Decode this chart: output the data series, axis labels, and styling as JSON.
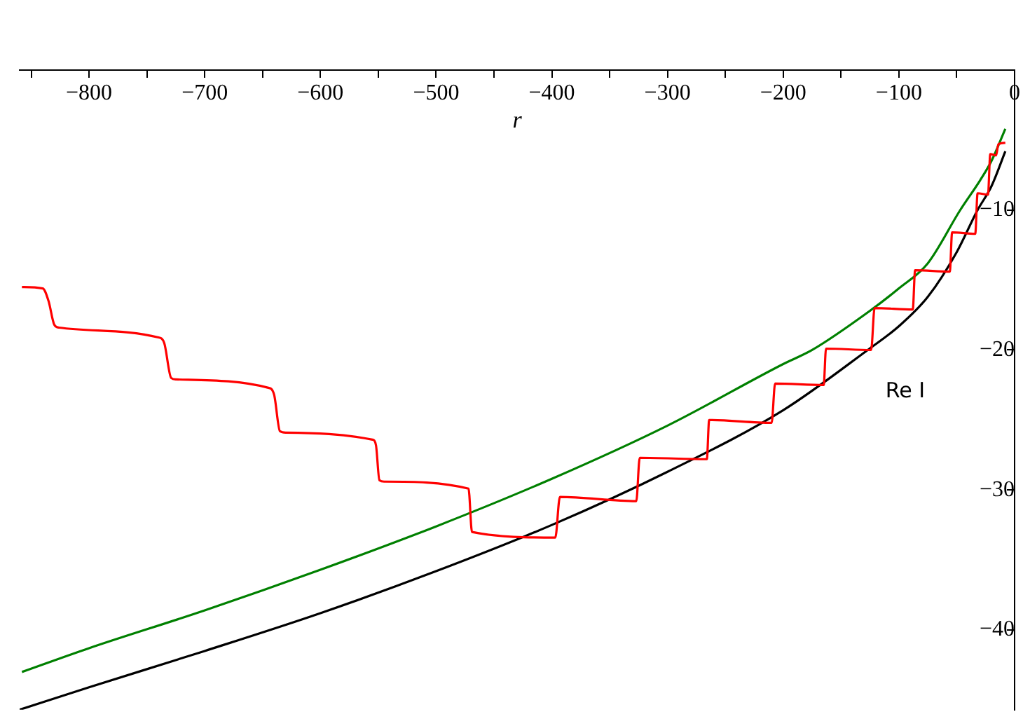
{
  "chart_data": {
    "type": "line",
    "xlabel": "r",
    "ylabel": "Re I",
    "grid": false,
    "legend": false,
    "xlim": [
      -860,
      0
    ],
    "ylim": [
      -45.7,
      0
    ],
    "xticks": [
      {
        "value": -850,
        "label": null
      },
      {
        "value": -800,
        "label": "−800"
      },
      {
        "value": -750,
        "label": null
      },
      {
        "value": -700,
        "label": "−700"
      },
      {
        "value": -650,
        "label": null
      },
      {
        "value": -600,
        "label": "−600"
      },
      {
        "value": -550,
        "label": null
      },
      {
        "value": -500,
        "label": "−500"
      },
      {
        "value": -450,
        "label": null
      },
      {
        "value": -400,
        "label": "−400"
      },
      {
        "value": -350,
        "label": null
      },
      {
        "value": -300,
        "label": "−300"
      },
      {
        "value": -250,
        "label": null
      },
      {
        "value": -200,
        "label": "−200"
      },
      {
        "value": -150,
        "label": null
      },
      {
        "value": -100,
        "label": "−100"
      },
      {
        "value": -50,
        "label": null
      },
      {
        "value": 0,
        "label": "0"
      }
    ],
    "yticks": [
      {
        "value": -10,
        "label": "−10"
      },
      {
        "value": -20,
        "label": "−20"
      },
      {
        "value": -30,
        "label": "−30"
      },
      {
        "value": -40,
        "label": "−40"
      }
    ],
    "series": [
      {
        "color": "#ff0000",
        "x": [
          -858,
          -840,
          -835,
          -830,
          -826,
          -740,
          -735,
          -729,
          -725,
          -645,
          -640,
          -635,
          -630,
          -555,
          -552,
          -549,
          -545,
          -472,
          -469,
          -397,
          -393,
          -327,
          -324,
          -266,
          -264,
          -210,
          -207,
          -165,
          -163,
          -124,
          -121,
          -88,
          -86,
          -56,
          -54,
          -34,
          -32,
          -23,
          -21,
          -16,
          -14,
          -8
        ],
        "values": [
          -15.5,
          -15.6,
          -16.5,
          -18.2,
          -18.4,
          -19.1,
          -19.5,
          -22.0,
          -22.1,
          -22.7,
          -23.2,
          -25.8,
          -25.9,
          -26.4,
          -26.8,
          -29.3,
          -29.4,
          -29.9,
          -33.0,
          -33.4,
          -30.5,
          -30.8,
          -27.7,
          -27.8,
          -25.0,
          -25.2,
          -22.4,
          -22.5,
          -19.9,
          -20.0,
          -17.0,
          -17.1,
          -14.3,
          -14.4,
          -11.6,
          -11.7,
          -8.8,
          -8.9,
          -6.0,
          -6.1,
          -5.3,
          -5.2
        ]
      },
      {
        "color": "#008000",
        "x": [
          -858,
          -800,
          -700,
          -600,
          -500,
          -400,
          -300,
          -200,
          -175,
          -125,
          -100,
          -75,
          -47,
          -30,
          -20,
          -8
        ],
        "values": [
          -43.0,
          -41.3,
          -38.6,
          -35.7,
          -32.6,
          -29.2,
          -25.4,
          -21.0,
          -20.0,
          -17.2,
          -15.6,
          -13.8,
          -10.0,
          -7.9,
          -6.5,
          -4.2
        ]
      },
      {
        "color": "#000000",
        "x": [
          -860,
          -800,
          -700,
          -600,
          -500,
          -400,
          -300,
          -200,
          -127,
          -100,
          -75,
          -50,
          -32,
          -20,
          -8
        ],
        "values": [
          -45.7,
          -44.1,
          -41.5,
          -38.8,
          -35.8,
          -32.5,
          -28.7,
          -24.3,
          -20.0,
          -18.3,
          -16.2,
          -13.0,
          -10.0,
          -8.3,
          -5.8
        ]
      }
    ]
  }
}
